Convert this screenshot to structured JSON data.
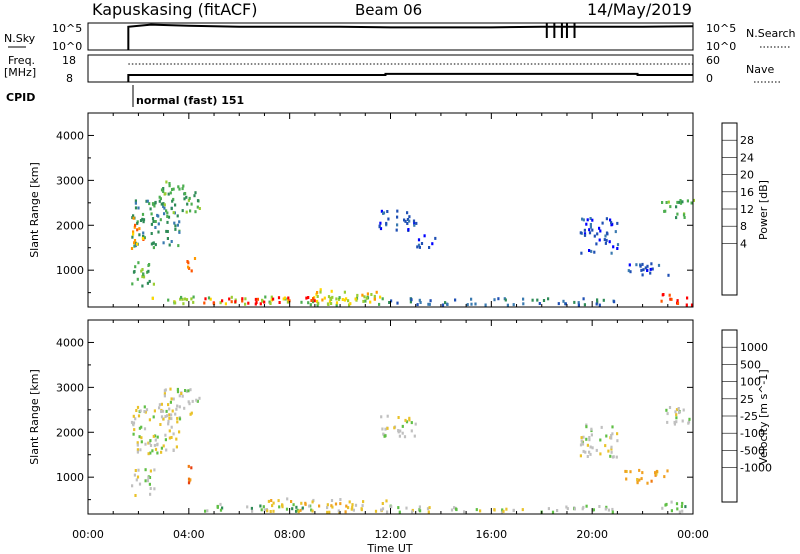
{
  "header": {
    "station": "Kapuskasing (fitACF)",
    "beam": "Beam 06",
    "date": "14/May/2019"
  },
  "sky_panel": {
    "label": "N.Sky",
    "left_ticks": [
      "10^5",
      "10^0"
    ],
    "right_ticks": [
      "10^5",
      "10^0"
    ],
    "right_label": "N.Search",
    "series": {
      "nsky": [
        [
          1.6,
          4.3
        ],
        [
          2.5,
          4.7
        ],
        [
          4.0,
          4.5
        ],
        [
          6.0,
          4.3
        ],
        [
          8.0,
          4.3
        ],
        [
          10.0,
          4.3
        ],
        [
          12.0,
          4.2
        ],
        [
          14.0,
          4.2
        ],
        [
          16.0,
          4.2
        ],
        [
          18.0,
          4.3
        ],
        [
          20.0,
          4.3
        ],
        [
          22.0,
          4.3
        ],
        [
          24.0,
          4.4
        ]
      ],
      "spikes": [
        18.2,
        18.5,
        18.8,
        19.0,
        19.3
      ]
    }
  },
  "freq_panel": {
    "label_line1": "Freq.",
    "label_line2": "[MHz]",
    "left_ticks": [
      "18",
      "8"
    ],
    "right_ticks": [
      "60",
      "0"
    ],
    "right_label": "Nave",
    "series": {
      "freq": [
        [
          1.6,
          10.6
        ],
        [
          11.8,
          10.6
        ],
        [
          11.8,
          11.0
        ],
        [
          21.8,
          11.0
        ],
        [
          21.8,
          10.6
        ],
        [
          24.0,
          10.6
        ]
      ],
      "nave": [
        [
          1.6,
          40
        ],
        [
          24.0,
          40
        ]
      ]
    }
  },
  "cpid": {
    "label": "CPID",
    "text": "normal (fast) 151"
  },
  "power_colorbar": {
    "label": "Power [dB]",
    "ticks": [
      "28",
      "24",
      "20",
      "16",
      "12",
      "8",
      "4"
    ],
    "colors": [
      "#0000ff",
      "#1f4fb4",
      "#3a7ab0",
      "#2e8b57",
      "#4cae50",
      "#9acd32",
      "#ffd700",
      "#ff9900",
      "#ff5500",
      "#ff0000"
    ]
  },
  "velocity_colorbar": {
    "label": "Velocity [m s^-1]",
    "ticks": [
      "1000",
      "500",
      "100",
      "25",
      "-25",
      "-100",
      "-500",
      "-1000"
    ],
    "colors": [
      "#1e2fc8",
      "#2b63b0",
      "#2f8a56",
      "#5fbf45",
      "#c0c0c0",
      "#e9c22a",
      "#f0a020",
      "#f07a10",
      "#e84010",
      "#ff0000"
    ]
  },
  "chart_data": [
    {
      "type": "heatmap",
      "title": "",
      "ylabel": "Slant Range [km]",
      "xlabel": "Time UT",
      "xlim": [
        0,
        24
      ],
      "ylim": [
        180,
        4500
      ],
      "yticks": [
        1000,
        2000,
        3000,
        4000
      ],
      "quantity": "power",
      "regions": [
        {
          "t0": 1.7,
          "t1": 3.6,
          "r0": 1500,
          "r1": 2600,
          "level": 3
        },
        {
          "t0": 2.8,
          "t1": 4.4,
          "r0": 2300,
          "r1": 3000,
          "level": 4
        },
        {
          "t0": 1.7,
          "t1": 2.6,
          "r0": 600,
          "r1": 1200,
          "level": 4
        },
        {
          "t0": 1.7,
          "t1": 2.2,
          "r0": 1500,
          "r1": 2200,
          "level": 7
        },
        {
          "t0": 3.9,
          "t1": 4.2,
          "r0": 900,
          "r1": 1300,
          "level": 8
        },
        {
          "t0": 2.5,
          "t1": 11.8,
          "r0": 250,
          "r1": 450,
          "level": 5
        },
        {
          "t0": 4.5,
          "t1": 9.0,
          "r0": 270,
          "r1": 430,
          "level": 9
        },
        {
          "t0": 9.0,
          "t1": 11.5,
          "r0": 350,
          "r1": 600,
          "level": 6
        },
        {
          "t0": 11.8,
          "t1": 21.0,
          "r0": 250,
          "r1": 400,
          "level": 2
        },
        {
          "t0": 11.5,
          "t1": 13.0,
          "r0": 1900,
          "r1": 2400,
          "level": 1
        },
        {
          "t0": 13.0,
          "t1": 13.8,
          "r0": 1500,
          "r1": 1800,
          "level": 1
        },
        {
          "t0": 19.5,
          "t1": 21.0,
          "r0": 1400,
          "r1": 2200,
          "level": 1
        },
        {
          "t0": 21.2,
          "t1": 23.0,
          "r0": 900,
          "r1": 1200,
          "level": 1
        },
        {
          "t0": 22.7,
          "t1": 24.0,
          "r0": 2200,
          "r1": 2600,
          "level": 4
        },
        {
          "t0": 22.7,
          "t1": 24.0,
          "r0": 250,
          "r1": 500,
          "level": 9
        }
      ]
    },
    {
      "type": "heatmap",
      "title": "",
      "ylabel": "Slant Range [km]",
      "xlabel": "Time UT",
      "xlim": [
        0,
        24
      ],
      "ylim": [
        180,
        4500
      ],
      "yticks": [
        1000,
        2000,
        3000,
        4000
      ],
      "xticks": [
        "00:00",
        "04:00",
        "08:00",
        "12:00",
        "16:00",
        "20:00",
        "00:00"
      ],
      "quantity": "velocity",
      "regions": [
        {
          "t0": 1.7,
          "t1": 3.6,
          "r0": 1500,
          "r1": 2600,
          "level": 4
        },
        {
          "t0": 2.8,
          "t1": 4.4,
          "r0": 2300,
          "r1": 3000,
          "level": 4
        },
        {
          "t0": 1.7,
          "t1": 2.6,
          "r0": 600,
          "r1": 1200,
          "level": 4
        },
        {
          "t0": 3.9,
          "t1": 4.2,
          "r0": 900,
          "r1": 1300,
          "level": 7
        },
        {
          "t0": 4.5,
          "t1": 9.0,
          "r0": 270,
          "r1": 430,
          "level": 3
        },
        {
          "t0": 7.0,
          "t1": 11.8,
          "r0": 250,
          "r1": 550,
          "level": 5
        },
        {
          "t0": 11.8,
          "t1": 21.0,
          "r0": 250,
          "r1": 400,
          "level": 4
        },
        {
          "t0": 11.5,
          "t1": 13.0,
          "r0": 1900,
          "r1": 2400,
          "level": 4
        },
        {
          "t0": 19.5,
          "t1": 21.0,
          "r0": 1400,
          "r1": 2200,
          "level": 4
        },
        {
          "t0": 21.2,
          "t1": 23.0,
          "r0": 900,
          "r1": 1200,
          "level": 6
        },
        {
          "t0": 22.7,
          "t1": 24.0,
          "r0": 2200,
          "r1": 2600,
          "level": 4
        },
        {
          "t0": 22.7,
          "t1": 24.0,
          "r0": 250,
          "r1": 500,
          "level": 3
        }
      ]
    }
  ]
}
